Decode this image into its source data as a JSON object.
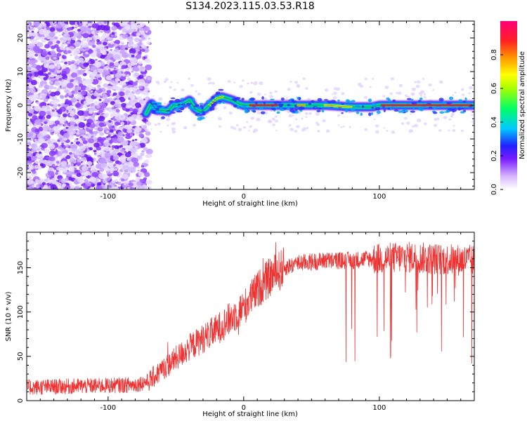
{
  "title": "S134.2023.115.03.53.R18",
  "chart_data": [
    {
      "type": "heatmap",
      "xlabel": "Height of straight line (km)",
      "ylabel": "Frequency (Hz)",
      "xlim": [
        -160,
        170
      ],
      "ylim": [
        -25,
        25
      ],
      "xticks": [
        -100,
        0,
        100
      ],
      "yticks": [
        -20,
        -10,
        0,
        10,
        20
      ],
      "colorbar": {
        "label": "Normalized spectral amplitude",
        "range": [
          0,
          1
        ],
        "ticks": [
          0.0,
          0.2,
          0.4,
          0.6,
          0.8
        ],
        "tick_labels": [
          "0.0",
          "0.2",
          "0.4",
          "0.6",
          "0.8"
        ]
      },
      "ridge": {
        "x": [
          -72,
          -68,
          -64,
          -60,
          -56,
          -52,
          -48,
          -44,
          -40,
          -36,
          -32,
          -28,
          -24,
          -20,
          -16,
          -12,
          -8,
          -4,
          0,
          10,
          30,
          60,
          80,
          95,
          100,
          120,
          150,
          170
        ],
        "y": [
          -2.5,
          0.5,
          -1.5,
          -1.5,
          -1.8,
          0.0,
          0.0,
          0.5,
          1.5,
          -1.0,
          -2.0,
          -1.0,
          0.5,
          2.0,
          2.5,
          2.0,
          1.5,
          0.5,
          0.0,
          0.0,
          0.0,
          0.0,
          -0.5,
          -0.5,
          0.0,
          0.0,
          0.0,
          0.0
        ]
      }
    },
    {
      "type": "line",
      "xlabel": "Height of straight line (km)",
      "ylabel": "SNR (10 * v/v)",
      "xlim": [
        -160,
        170
      ],
      "ylim": [
        0,
        190
      ],
      "xticks": [
        -100,
        0,
        100
      ],
      "yticks": [
        0,
        50,
        100,
        150
      ],
      "color": "#ee3333",
      "trend": {
        "x": [
          -160,
          -100,
          -80,
          -70,
          -60,
          -40,
          -20,
          0,
          10,
          20,
          30,
          40,
          60,
          80,
          90,
          100,
          120,
          140,
          170
        ],
        "y": [
          15,
          17,
          18,
          22,
          35,
          60,
          80,
          105,
          125,
          140,
          150,
          155,
          158,
          158,
          160,
          160,
          162,
          160,
          158
        ]
      }
    }
  ]
}
